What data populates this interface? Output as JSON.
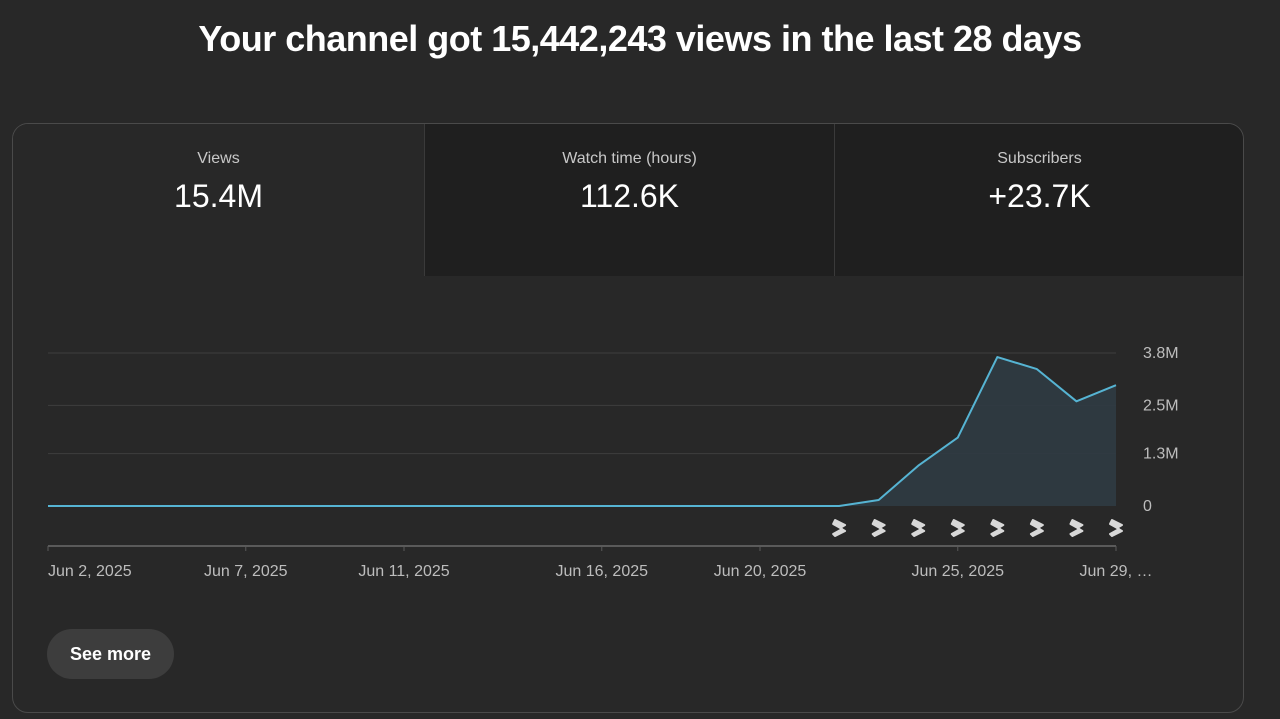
{
  "headline": "Your channel got 15,442,243 views in the last 28 days",
  "tabs": [
    {
      "label": "Views",
      "value": "15.4M",
      "active": true
    },
    {
      "label": "Watch time (hours)",
      "value": "112.6K",
      "active": false
    },
    {
      "label": "Subscribers",
      "value": "+23.7K",
      "active": false
    }
  ],
  "see_more_label": "See more",
  "shorts_icon": "shorts-icon",
  "colors": {
    "line": "#56b4d3",
    "fill": "#2f3b42",
    "grid": "#3e3e3e"
  },
  "chart_data": {
    "type": "area",
    "x": [
      "Jun 2, 2025",
      "Jun 3, 2025",
      "Jun 4, 2025",
      "Jun 5, 2025",
      "Jun 6, 2025",
      "Jun 7, 2025",
      "Jun 8, 2025",
      "Jun 9, 2025",
      "Jun 10, 2025",
      "Jun 11, 2025",
      "Jun 12, 2025",
      "Jun 13, 2025",
      "Jun 14, 2025",
      "Jun 15, 2025",
      "Jun 16, 2025",
      "Jun 17, 2025",
      "Jun 18, 2025",
      "Jun 19, 2025",
      "Jun 20, 2025",
      "Jun 21, 2025",
      "Jun 22, 2025",
      "Jun 23, 2025",
      "Jun 24, 2025",
      "Jun 25, 2025",
      "Jun 26, 2025",
      "Jun 27, 2025",
      "Jun 28, 2025",
      "Jun 29, 2025"
    ],
    "values": [
      0,
      0,
      0,
      0,
      0,
      0,
      0,
      0,
      0,
      0,
      0,
      0,
      0,
      0,
      0,
      0,
      0,
      0,
      0,
      0,
      0,
      150000,
      1000000,
      1700000,
      3700000,
      3400000,
      2600000,
      3000000
    ],
    "x_tick_labels": [
      "Jun 2, 2025",
      "Jun 7, 2025",
      "Jun 11, 2025",
      "Jun 16, 2025",
      "Jun 20, 2025",
      "Jun 25, 2025",
      "Jun 29, …"
    ],
    "x_tick_index": [
      0,
      5,
      9,
      14,
      18,
      23,
      27
    ],
    "y_tick_labels": [
      "3.8M",
      "2.5M",
      "1.3M",
      "0"
    ],
    "y_tick_values": [
      3800000,
      2500000,
      1300000,
      0
    ],
    "ylim": [
      0,
      3800000
    ],
    "short_markers_from_index": 20,
    "grid": true,
    "legend": "none"
  }
}
